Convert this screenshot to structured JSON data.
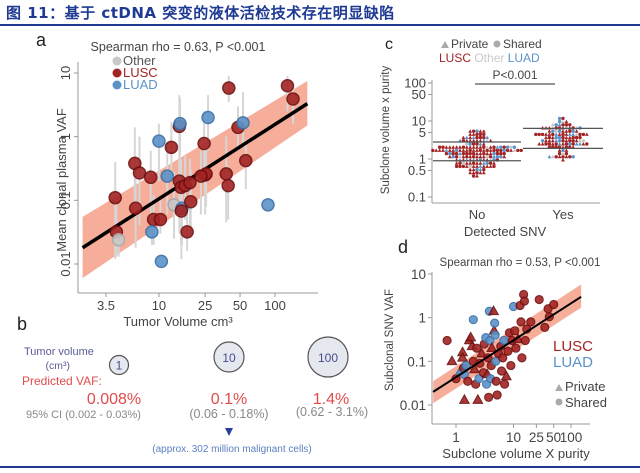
{
  "figure": {
    "title": "图 11：基于 ctDNA 突变的液体活检技术存在明显缺陷"
  },
  "colors": {
    "title_blue": "#1f3a93",
    "lusc": "#a32424",
    "luad": "#5b93c9",
    "other": "#c8c8c8",
    "ci_band": "#f4a088",
    "fit_line": "#000000",
    "errorbar": "#d6d6d6",
    "predicted_red": "#e24b4b",
    "volume_label_blue": "#5a5a9a",
    "annotation_blue": "#5b7fbf",
    "triangle_blue": "#2a3f9a"
  },
  "panel_b": {
    "letter": "b",
    "tumor_volume_label": "Tumor volume",
    "tumor_volume_unit": "(cm³)",
    "predicted_label": "Predicted VAF:",
    "items": [
      {
        "volume": "1",
        "vaf": "0.008%",
        "ci": "95% CI (0.002 - 0.03%)"
      },
      {
        "volume": "10",
        "vaf": "0.1%",
        "ci": "(0.06 - 0.18%)"
      },
      {
        "volume": "100",
        "vaf": "1.4%",
        "ci": "(0.62 - 3.1%)"
      }
    ],
    "annotation": "(approx. 302 million malignant cells)"
  },
  "chart_data": [
    {
      "id": "a",
      "type": "scatter",
      "letter": "a",
      "title": "Spearman rho = 0.63, P <0.001",
      "xlabel": "Tumor Volume cm³",
      "ylabel": "Mean clonal plasma VAF",
      "x_scale": "log",
      "y_scale": "log",
      "xlim": [
        2.2,
        190
      ],
      "ylim": [
        0.003,
        15
      ],
      "xticks": [
        3.5,
        10,
        25,
        50,
        100
      ],
      "xtick_labels": [
        "3.5",
        "10",
        "25",
        "50",
        "100"
      ],
      "yticks": [
        0.01,
        0.1,
        1,
        10
      ],
      "ytick_labels": [
        "0.01",
        "0.1",
        "1",
        "10"
      ],
      "legend": [
        {
          "label": "Other",
          "group": "other"
        },
        {
          "label": "LUSC",
          "group": "lusc"
        },
        {
          "label": "LUAD",
          "group": "luad"
        }
      ],
      "legend_position": "top-left",
      "fit": {
        "x": [
          2.2,
          190
        ],
        "y": [
          0.018,
          3.3
        ]
      },
      "ci_band": {
        "x": [
          2.2,
          190
        ],
        "lower": [
          0.006,
          1.5
        ],
        "upper": [
          0.055,
          7.5
        ]
      },
      "points": [
        {
          "x": 4.2,
          "y": 0.11,
          "group": "lusc",
          "err": [
            0.012,
            0.4
          ]
        },
        {
          "x": 4.3,
          "y": 0.032,
          "group": "lusc",
          "err": [
            0.013,
            0.09
          ]
        },
        {
          "x": 4.5,
          "y": 0.024,
          "group": "other",
          "err": [
            0.013,
            0.04
          ]
        },
        {
          "x": 6.2,
          "y": 0.38,
          "group": "lusc",
          "err": [
            0.1,
            1.4
          ]
        },
        {
          "x": 6.8,
          "y": 0.27,
          "group": "lusc",
          "err": [
            0.04,
            1.0
          ]
        },
        {
          "x": 6.3,
          "y": 0.075,
          "group": "lusc",
          "err": [
            0.018,
            0.3
          ]
        },
        {
          "x": 8.5,
          "y": 0.23,
          "group": "lusc",
          "err": [
            0.05,
            0.6
          ]
        },
        {
          "x": 9.0,
          "y": 0.05,
          "group": "lusc",
          "err": [
            0.02,
            0.12
          ]
        },
        {
          "x": 10.3,
          "y": 0.05,
          "group": "lusc",
          "err": [
            0.03,
            0.1
          ]
        },
        {
          "x": 8.7,
          "y": 0.032,
          "group": "luad",
          "err": [
            0.02,
            0.06
          ]
        },
        {
          "x": 10.5,
          "y": 0.011,
          "group": "luad",
          "err": null
        },
        {
          "x": 10.0,
          "y": 0.85,
          "group": "luad",
          "err": [
            0.2,
            1.6
          ]
        },
        {
          "x": 11.8,
          "y": 0.24,
          "group": "luad",
          "err": [
            0.06,
            0.8
          ]
        },
        {
          "x": 12.8,
          "y": 0.68,
          "group": "lusc",
          "err": [
            0.2,
            1.7
          ]
        },
        {
          "x": 13.5,
          "y": 0.085,
          "group": "other",
          "err": [
            0.025,
            0.28
          ]
        },
        {
          "x": 15.0,
          "y": 1.45,
          "group": "lusc",
          "err": [
            0.3,
            4.5
          ]
        },
        {
          "x": 15.2,
          "y": 1.6,
          "group": "luad",
          "err": [
            0.5,
            4.0
          ]
        },
        {
          "x": 15.0,
          "y": 0.2,
          "group": "lusc",
          "err": [
            0.03,
            0.5
          ]
        },
        {
          "x": 15.5,
          "y": 0.16,
          "group": "lusc",
          "err": [
            0.02,
            0.45
          ]
        },
        {
          "x": 15.8,
          "y": 0.075,
          "group": "luad",
          "err": [
            0.02,
            0.2
          ]
        },
        {
          "x": 15.6,
          "y": 0.068,
          "group": "lusc",
          "err": [
            0.012,
            0.3
          ]
        },
        {
          "x": 16.8,
          "y": 0.17,
          "group": "lusc",
          "err": [
            0.05,
            0.5
          ]
        },
        {
          "x": 17.5,
          "y": 0.032,
          "group": "lusc",
          "err": [
            0.016,
            0.06
          ]
        },
        {
          "x": 18.5,
          "y": 0.19,
          "group": "lusc",
          "err": [
            0.04,
            0.45
          ]
        },
        {
          "x": 18.8,
          "y": 0.095,
          "group": "lusc",
          "err": [
            0.03,
            0.3
          ]
        },
        {
          "x": 24.5,
          "y": 0.78,
          "group": "lusc",
          "err": [
            0.2,
            2.5
          ]
        },
        {
          "x": 25.0,
          "y": 0.25,
          "group": "lusc",
          "err": [
            0.06,
            0.8
          ]
        },
        {
          "x": 25.5,
          "y": 0.26,
          "group": "lusc",
          "err": [
            0.08,
            0.7
          ]
        },
        {
          "x": 23.0,
          "y": 0.24,
          "group": "lusc",
          "err": [
            0.06,
            0.6
          ]
        },
        {
          "x": 26.5,
          "y": 2.0,
          "group": "luad",
          "err": [
            0.6,
            4.5
          ]
        },
        {
          "x": 38.0,
          "y": 0.26,
          "group": "lusc",
          "err": [
            0.045,
            1.0
          ]
        },
        {
          "x": 39.5,
          "y": 0.17,
          "group": "lusc",
          "err": [
            0.05,
            0.35
          ]
        },
        {
          "x": 40.0,
          "y": 5.8,
          "group": "lusc",
          "err": [
            3.5,
            9
          ]
        },
        {
          "x": 48.0,
          "y": 1.4,
          "group": "lusc",
          "err": [
            0.6,
            3.0
          ]
        },
        {
          "x": 53.0,
          "y": 1.65,
          "group": "luad",
          "err": [
            0.7,
            5.0
          ]
        },
        {
          "x": 56.0,
          "y": 0.42,
          "group": "lusc",
          "err": [
            0.15,
            0.9
          ]
        },
        {
          "x": 87.0,
          "y": 0.085,
          "group": "luad",
          "err": null
        },
        {
          "x": 128.0,
          "y": 6.3,
          "group": "lusc",
          "err": [
            2.5,
            9
          ]
        },
        {
          "x": 143.0,
          "y": 3.9,
          "group": "lusc",
          "err": [
            1.6,
            6
          ]
        }
      ]
    },
    {
      "id": "c",
      "type": "scatter",
      "subtype": "beeswarm",
      "letter": "c",
      "title": "",
      "xlabel": "Detected SNV",
      "ylabel": "Subclone volume x purity",
      "y_scale": "log",
      "ylim": [
        0.08,
        140
      ],
      "yticks": [
        0.1,
        0.5,
        1,
        5,
        10,
        50,
        100
      ],
      "ytick_labels": [
        "0.1",
        "0.5",
        "1",
        "5",
        "10",
        "50",
        "100"
      ],
      "categories": [
        "No",
        "Yes"
      ],
      "legend_shapes": [
        {
          "label": "Private",
          "shape": "triangle"
        },
        {
          "label": "Shared",
          "shape": "circle"
        }
      ],
      "legend_groups": [
        {
          "label": "LUSC",
          "group": "lusc"
        },
        {
          "label": "Other",
          "group": "other"
        },
        {
          "label": "LUAD",
          "group": "luad"
        }
      ],
      "legend_position": "top",
      "significance": "P<0.001",
      "quartiles": {
        "No": {
          "q1": 0.9,
          "median": 1.5,
          "q3": 2.8
        },
        "Yes": {
          "q1": 1.9,
          "median": 3.4,
          "q3": 6.4
        }
      },
      "distribution": {
        "No": {
          "min": 0.2,
          "max": 13,
          "n_approx": 170,
          "composition": "LUSC majority, LUAD and Other mixed"
        },
        "Yes": {
          "min": 0.35,
          "max": 40,
          "n_approx": 110,
          "composition": "LUSC majority, few LUAD"
        }
      }
    },
    {
      "id": "d",
      "type": "scatter",
      "letter": "d",
      "title": "Spearman rho = 0.53, P <0.001",
      "xlabel": "Subclone volume X purity",
      "ylabel": "Subclonal SNV VAF",
      "x_scale": "log",
      "y_scale": "log",
      "xlim": [
        0.4,
        150
      ],
      "ylim": [
        0.005,
        10
      ],
      "xticks": [
        1,
        10,
        25,
        50,
        100
      ],
      "xtick_labels": [
        "1",
        "10",
        "25",
        "50",
        "100"
      ],
      "yticks": [
        0.01,
        0.1,
        1,
        10
      ],
      "ytick_labels": [
        "0.01",
        "0.1",
        "1",
        "10"
      ],
      "legend": [
        {
          "label": "LUSC",
          "group": "lusc"
        },
        {
          "label": "LUAD",
          "group": "luad"
        },
        {
          "label": "Private",
          "shape": "triangle"
        },
        {
          "label": "Shared",
          "shape": "circle"
        }
      ],
      "legend_position": "right",
      "fit": {
        "x": [
          0.4,
          150
        ],
        "y": [
          0.02,
          3.0
        ]
      },
      "ci_band": {
        "x": [
          0.4,
          150
        ],
        "lower": [
          0.011,
          1.7
        ],
        "upper": [
          0.035,
          5.8
        ]
      },
      "points": [
        {
          "x": 0.7,
          "y": 0.3,
          "group": "lusc",
          "shape": "circle"
        },
        {
          "x": 0.85,
          "y": 0.1,
          "group": "lusc",
          "shape": "triangle"
        },
        {
          "x": 1.0,
          "y": 0.04,
          "group": "lusc",
          "shape": "circle"
        },
        {
          "x": 1.2,
          "y": 0.06,
          "group": "luad",
          "shape": "triangle"
        },
        {
          "x": 1.3,
          "y": 0.16,
          "group": "lusc",
          "shape": "triangle"
        },
        {
          "x": 1.3,
          "y": 0.12,
          "group": "lusc",
          "shape": "triangle"
        },
        {
          "x": 1.35,
          "y": 0.07,
          "group": "lusc",
          "shape": "circle"
        },
        {
          "x": 1.4,
          "y": 0.013,
          "group": "lusc",
          "shape": "triangle"
        },
        {
          "x": 1.4,
          "y": 0.05,
          "group": "luad",
          "shape": "circle"
        },
        {
          "x": 1.5,
          "y": 0.08,
          "group": "luad",
          "shape": "circle"
        },
        {
          "x": 1.6,
          "y": 0.035,
          "group": "lusc",
          "shape": "circle"
        },
        {
          "x": 1.7,
          "y": 0.3,
          "group": "lusc",
          "shape": "triangle"
        },
        {
          "x": 1.8,
          "y": 0.35,
          "group": "lusc",
          "shape": "triangle"
        },
        {
          "x": 1.9,
          "y": 0.22,
          "group": "lusc",
          "shape": "triangle"
        },
        {
          "x": 2.0,
          "y": 0.9,
          "group": "luad",
          "shape": "circle"
        },
        {
          "x": 2.0,
          "y": 0.1,
          "group": "lusc",
          "shape": "circle"
        },
        {
          "x": 2.1,
          "y": 0.065,
          "group": "lusc",
          "shape": "triangle"
        },
        {
          "x": 2.2,
          "y": 0.03,
          "group": "lusc",
          "shape": "circle"
        },
        {
          "x": 2.3,
          "y": 0.2,
          "group": "lusc",
          "shape": "circle"
        },
        {
          "x": 2.4,
          "y": 0.013,
          "group": "lusc",
          "shape": "triangle"
        },
        {
          "x": 2.5,
          "y": 0.04,
          "group": "luad",
          "shape": "circle"
        },
        {
          "x": 2.6,
          "y": 0.09,
          "group": "lusc",
          "shape": "circle"
        },
        {
          "x": 2.8,
          "y": 0.15,
          "group": "lusc",
          "shape": "triangle"
        },
        {
          "x": 3.0,
          "y": 0.055,
          "group": "lusc",
          "shape": "circle"
        },
        {
          "x": 3.1,
          "y": 0.25,
          "group": "lusc",
          "shape": "circle"
        },
        {
          "x": 3.3,
          "y": 0.35,
          "group": "luad",
          "shape": "circle"
        },
        {
          "x": 3.4,
          "y": 0.03,
          "group": "luad",
          "shape": "circle"
        },
        {
          "x": 3.5,
          "y": 0.05,
          "group": "lusc",
          "shape": "triangle"
        },
        {
          "x": 3.6,
          "y": 0.12,
          "group": "lusc",
          "shape": "circle"
        },
        {
          "x": 3.7,
          "y": 0.015,
          "group": "lusc",
          "shape": "circle"
        },
        {
          "x": 3.8,
          "y": 1.4,
          "group": "luad",
          "shape": "circle"
        },
        {
          "x": 3.9,
          "y": 0.3,
          "group": "luad",
          "shape": "circle"
        },
        {
          "x": 4.0,
          "y": 0.04,
          "group": "luad",
          "shape": "circle"
        },
        {
          "x": 4.1,
          "y": 0.08,
          "group": "lusc",
          "shape": "circle"
        },
        {
          "x": 4.2,
          "y": 0.2,
          "group": "lusc",
          "shape": "triangle"
        },
        {
          "x": 4.5,
          "y": 1.4,
          "group": "lusc",
          "shape": "triangle"
        },
        {
          "x": 4.6,
          "y": 0.5,
          "group": "lusc",
          "shape": "triangle"
        },
        {
          "x": 4.7,
          "y": 0.75,
          "group": "luad",
          "shape": "circle"
        },
        {
          "x": 4.8,
          "y": 0.4,
          "group": "luad",
          "shape": "circle"
        },
        {
          "x": 4.9,
          "y": 0.1,
          "group": "luad",
          "shape": "circle"
        },
        {
          "x": 5.0,
          "y": 0.035,
          "group": "lusc",
          "shape": "circle"
        },
        {
          "x": 5.2,
          "y": 0.017,
          "group": "lusc",
          "shape": "circle"
        },
        {
          "x": 5.5,
          "y": 0.15,
          "group": "lusc",
          "shape": "circle"
        },
        {
          "x": 6.0,
          "y": 0.22,
          "group": "lusc",
          "shape": "circle"
        },
        {
          "x": 6.2,
          "y": 0.06,
          "group": "lusc",
          "shape": "circle"
        },
        {
          "x": 6.5,
          "y": 0.12,
          "group": "lusc",
          "shape": "circle"
        },
        {
          "x": 6.8,
          "y": 0.3,
          "group": "luad",
          "shape": "circle"
        },
        {
          "x": 7.0,
          "y": 0.03,
          "group": "lusc",
          "shape": "circle"
        },
        {
          "x": 7.5,
          "y": 0.045,
          "group": "lusc",
          "shape": "triangle"
        },
        {
          "x": 8.0,
          "y": 0.17,
          "group": "lusc",
          "shape": "circle"
        },
        {
          "x": 8.5,
          "y": 0.45,
          "group": "lusc",
          "shape": "circle"
        },
        {
          "x": 9.0,
          "y": 0.08,
          "group": "lusc",
          "shape": "circle"
        },
        {
          "x": 9.5,
          "y": 0.3,
          "group": "lusc",
          "shape": "circle"
        },
        {
          "x": 10.0,
          "y": 1.8,
          "group": "luad",
          "shape": "circle"
        },
        {
          "x": 10.5,
          "y": 0.5,
          "group": "lusc",
          "shape": "circle"
        },
        {
          "x": 11.0,
          "y": 0.2,
          "group": "lusc",
          "shape": "circle"
        },
        {
          "x": 12.0,
          "y": 0.32,
          "group": "lusc",
          "shape": "triangle"
        },
        {
          "x": 13.0,
          "y": 1.9,
          "group": "lusc",
          "shape": "circle"
        },
        {
          "x": 13.5,
          "y": 0.8,
          "group": "lusc",
          "shape": "circle"
        },
        {
          "x": 14.0,
          "y": 0.12,
          "group": "lusc",
          "shape": "circle"
        },
        {
          "x": 15.0,
          "y": 3.4,
          "group": "lusc",
          "shape": "circle"
        },
        {
          "x": 15.5,
          "y": 2.4,
          "group": "lusc",
          "shape": "circle"
        },
        {
          "x": 16.0,
          "y": 0.3,
          "group": "lusc",
          "shape": "circle"
        },
        {
          "x": 17.0,
          "y": 0.55,
          "group": "lusc",
          "shape": "circle"
        },
        {
          "x": 20.0,
          "y": 0.8,
          "group": "lusc",
          "shape": "circle"
        },
        {
          "x": 28.0,
          "y": 2.6,
          "group": "lusc",
          "shape": "circle"
        },
        {
          "x": 35.0,
          "y": 0.6,
          "group": "lusc",
          "shape": "circle"
        },
        {
          "x": 40.0,
          "y": 1.6,
          "group": "lusc",
          "shape": "circle"
        },
        {
          "x": 42.0,
          "y": 1.05,
          "group": "lusc",
          "shape": "circle"
        },
        {
          "x": 50.0,
          "y": 2.0,
          "group": "lusc",
          "shape": "circle"
        }
      ]
    }
  ]
}
